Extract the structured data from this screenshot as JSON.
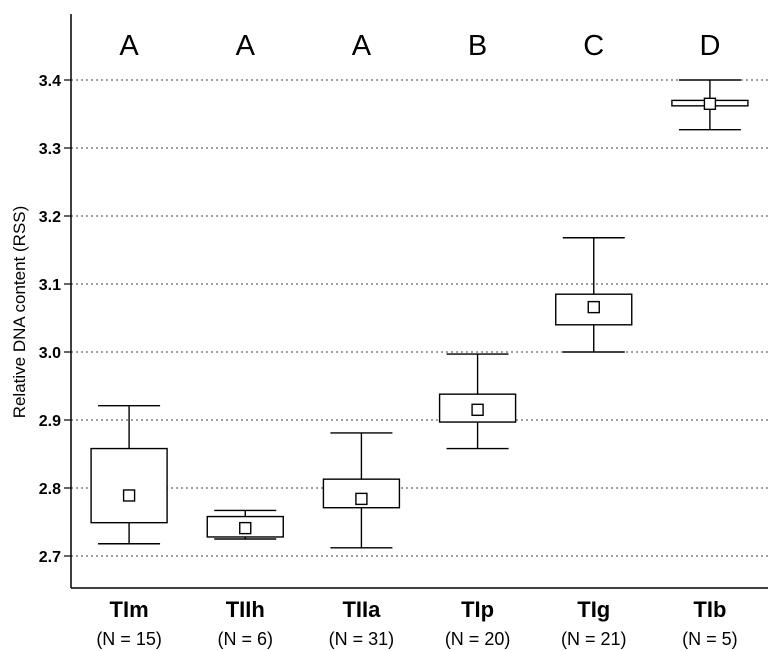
{
  "chart_data": {
    "type": "box",
    "ylabel": "Relative DNA content (RSS)",
    "xlabel": "",
    "ylim": [
      2.65,
      3.48
    ],
    "yticks": [
      "2.7",
      "2.8",
      "2.9",
      "3.0",
      "3.1",
      "3.2",
      "3.3",
      "3.4"
    ],
    "grid": "horizontal dotted",
    "categories": [
      "TIm",
      "TIIh",
      "TIIa",
      "TIp",
      "TIg",
      "TIb"
    ],
    "n_labels": [
      "(N = 15)",
      "(N = 6)",
      "(N = 31)",
      "(N = 20)",
      "(N = 21)",
      "(N = 5)"
    ],
    "group_letters": [
      "A",
      "A",
      "A",
      "B",
      "C",
      "D"
    ],
    "boxes": [
      {
        "whisker_low": 2.718,
        "box_low": 2.749,
        "mean": 2.789,
        "box_high": 2.858,
        "whisker_high": 2.921
      },
      {
        "whisker_low": 2.725,
        "box_low": 2.728,
        "mean": 2.741,
        "box_high": 2.758,
        "whisker_high": 2.767
      },
      {
        "whisker_low": 2.712,
        "box_low": 2.771,
        "mean": 2.784,
        "box_high": 2.813,
        "whisker_high": 2.881
      },
      {
        "whisker_low": 2.858,
        "box_low": 2.897,
        "mean": 2.915,
        "box_high": 2.938,
        "whisker_high": 2.997
      },
      {
        "whisker_low": 3.0,
        "box_low": 3.04,
        "mean": 3.066,
        "box_high": 3.085,
        "whisker_high": 3.168
      },
      {
        "whisker_low": 3.327,
        "box_low": 3.362,
        "mean": 3.365,
        "box_high": 3.37,
        "whisker_high": 3.4
      }
    ]
  }
}
